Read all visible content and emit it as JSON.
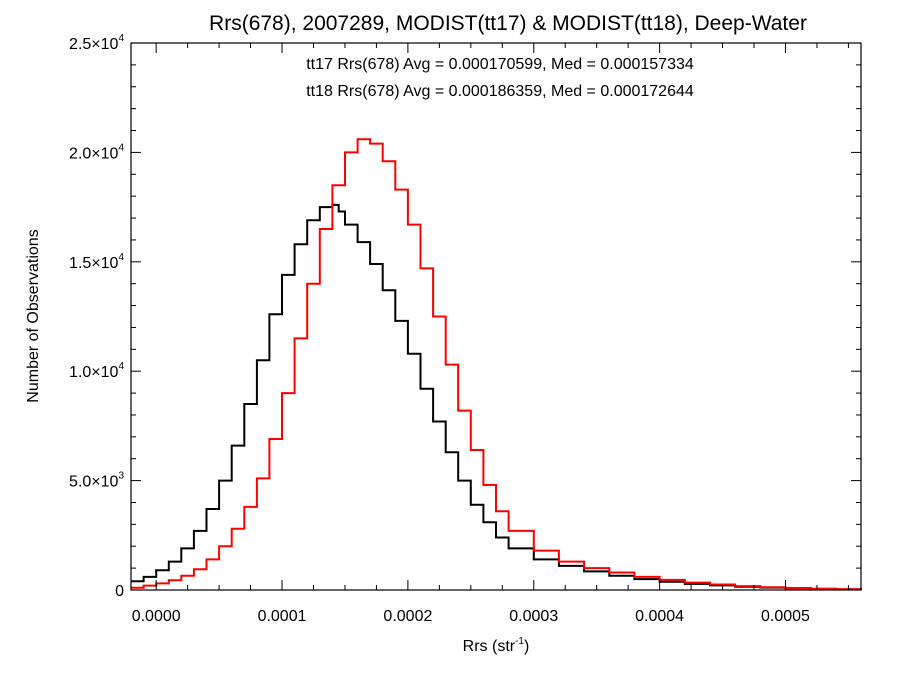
{
  "chart_data": {
    "type": "line",
    "title": "Rrs(678), 2007289, MODIST(tt17) & MODIST(tt18), Deep-Water",
    "xlabel": "Rrs (str",
    "xlabel_sup": "-1",
    "xlabel_end": ")",
    "ylabel": "Number of Observations",
    "xlim": [
      -2e-05,
      0.00056
    ],
    "ylim": [
      0,
      25000
    ],
    "x_ticks": [
      {
        "value": 0.0,
        "label": "0.0000"
      },
      {
        "value": 0.0001,
        "label": "0.0001"
      },
      {
        "value": 0.0002,
        "label": "0.0002"
      },
      {
        "value": 0.0003,
        "label": "0.0003"
      },
      {
        "value": 0.0004,
        "label": "0.0004"
      },
      {
        "value": 0.0005,
        "label": "0.0005"
      }
    ],
    "y_ticks": [
      {
        "value": 0,
        "mant": "0",
        "exp": ""
      },
      {
        "value": 5000,
        "mant": "5.0×10",
        "exp": "3"
      },
      {
        "value": 10000,
        "mant": "1.0×10",
        "exp": "4"
      },
      {
        "value": 15000,
        "mant": "1.5×10",
        "exp": "4"
      },
      {
        "value": 20000,
        "mant": "2.0×10",
        "exp": "4"
      },
      {
        "value": 25000,
        "mant": "2.5×10",
        "exp": "4"
      }
    ],
    "annotations": [
      {
        "text": "tt17 Rrs(678) Avg = 0.000170599, Med = 0.000157334",
        "color": "#000000"
      },
      {
        "text": "tt18 Rrs(678) Avg = 0.000186359, Med = 0.000172644",
        "color": "#ff0000"
      }
    ],
    "series": [
      {
        "color": "#000000",
        "x": [
          -2e-05,
          -1e-05,
          0.0,
          1e-05,
          2e-05,
          3e-05,
          4e-05,
          5e-05,
          6e-05,
          7e-05,
          8e-05,
          9e-05,
          0.0001,
          0.00011,
          0.00012,
          0.00013,
          0.00014,
          0.000145,
          0.00015,
          0.00016,
          0.00017,
          0.00018,
          0.00019,
          0.0002,
          0.00021,
          0.00022,
          0.00023,
          0.00024,
          0.00025,
          0.00026,
          0.00027,
          0.00028,
          0.0003,
          0.00032,
          0.00034,
          0.00036,
          0.00038,
          0.0004,
          0.00042,
          0.00044,
          0.00046,
          0.00048,
          0.0005,
          0.00052,
          0.00054,
          0.00056
        ],
        "y": [
          400,
          600,
          900,
          1300,
          1900,
          2700,
          3700,
          5000,
          6600,
          8500,
          10500,
          12600,
          14400,
          15800,
          16900,
          17500,
          17600,
          17300,
          16700,
          15900,
          14900,
          13700,
          12300,
          10800,
          9200,
          7700,
          6300,
          5000,
          3900,
          3100,
          2400,
          1900,
          1400,
          1100,
          850,
          650,
          500,
          380,
          280,
          210,
          150,
          110,
          80,
          50,
          30,
          10
        ]
      },
      {
        "color": "#ff0000",
        "x": [
          -2e-05,
          -1e-05,
          0.0,
          1e-05,
          2e-05,
          3e-05,
          4e-05,
          5e-05,
          6e-05,
          7e-05,
          8e-05,
          9e-05,
          0.0001,
          0.00011,
          0.00012,
          0.00013,
          0.00014,
          0.00015,
          0.00016,
          0.00017,
          0.00018,
          0.00019,
          0.0002,
          0.00021,
          0.00022,
          0.00023,
          0.00024,
          0.00025,
          0.00026,
          0.00027,
          0.00028,
          0.0003,
          0.00032,
          0.00034,
          0.00036,
          0.00038,
          0.0004,
          0.00042,
          0.00044,
          0.00046,
          0.00048,
          0.0005,
          0.00052,
          0.00054,
          0.00056
        ],
        "y": [
          100,
          200,
          300,
          450,
          650,
          950,
          1400,
          2000,
          2800,
          3800,
          5100,
          6900,
          9000,
          11500,
          14000,
          16500,
          18500,
          20000,
          20600,
          20400,
          19600,
          18300,
          16700,
          14700,
          12500,
          10300,
          8200,
          6400,
          4800,
          3600,
          2700,
          1800,
          1300,
          1000,
          800,
          600,
          460,
          340,
          250,
          180,
          130,
          90,
          60,
          35,
          15
        ]
      }
    ]
  }
}
